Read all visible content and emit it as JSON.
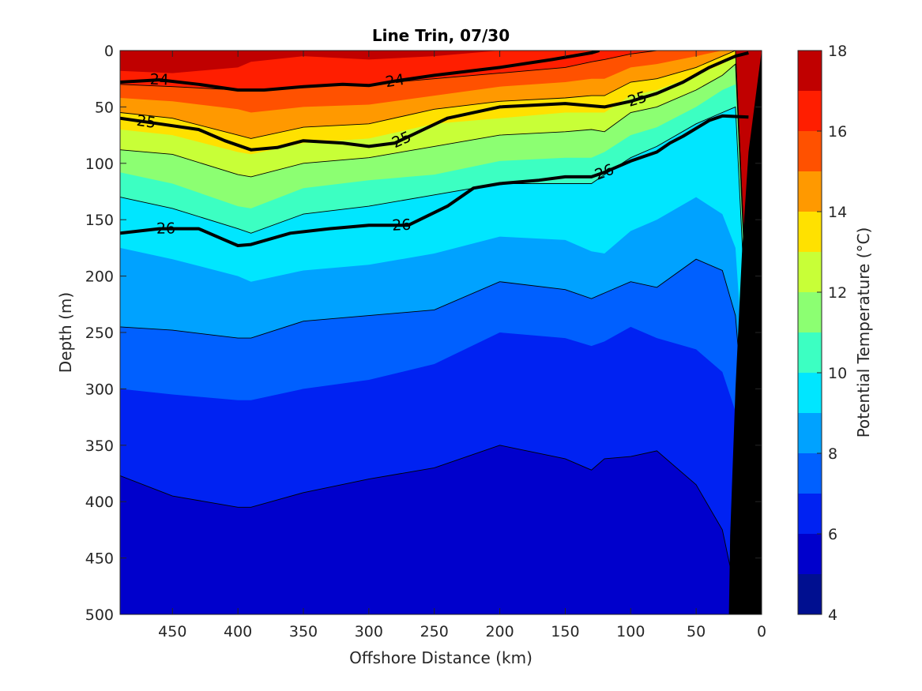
{
  "chart_data": {
    "type": "contourf",
    "title": "Line Trin, 07/30",
    "xlabel": "Offshore Distance (km)",
    "ylabel": "Depth (m)",
    "xlim": [
      490,
      0
    ],
    "ylim": [
      500,
      0
    ],
    "x_reversed": true,
    "y_reversed": true,
    "xticks": [
      450,
      400,
      350,
      300,
      250,
      200,
      150,
      100,
      50,
      0
    ],
    "yticks": [
      0,
      50,
      100,
      150,
      200,
      250,
      300,
      350,
      400,
      450,
      500
    ],
    "colorbar": {
      "label": "Potential Temperature (°C)",
      "range": [
        4,
        18
      ],
      "ticks": [
        4,
        6,
        8,
        10,
        12,
        14,
        16,
        18
      ],
      "levels": [
        4,
        5,
        6,
        7,
        8,
        9,
        10,
        11,
        12,
        13,
        14,
        15,
        16,
        17,
        18
      ],
      "colors": [
        "#000f90",
        "#0000cc",
        "#0022f2",
        "#0060ff",
        "#00a2ff",
        "#00e6ff",
        "#3cffc2",
        "#8cff72",
        "#c8ff37",
        "#ffe100",
        "#ff9900",
        "#ff5100",
        "#ff1e00",
        "#c00000"
      ]
    },
    "isotherm_depths": {
      "distance_km": [
        490,
        450,
        400,
        390,
        350,
        300,
        250,
        200,
        150,
        130,
        120,
        100,
        80,
        50,
        30,
        20,
        0
      ],
      "levels": [
        {
          "temp": 5,
          "depth_m": [
            520,
            520,
            520,
            520,
            520,
            520,
            520,
            520,
            520,
            520,
            520,
            520,
            520,
            520,
            520,
            520,
            520
          ]
        },
        {
          "temp": 6,
          "depth_m": [
            377,
            395,
            405,
            405,
            392,
            380,
            370,
            350,
            362,
            372,
            362,
            360,
            355,
            385,
            425,
            480,
            520
          ]
        },
        {
          "temp": 7,
          "depth_m": [
            300,
            305,
            310,
            310,
            300,
            292,
            278,
            250,
            255,
            262,
            258,
            245,
            255,
            265,
            285,
            320,
            520
          ]
        },
        {
          "temp": 8,
          "depth_m": [
            245,
            248,
            255,
            255,
            240,
            235,
            230,
            205,
            212,
            220,
            215,
            205,
            210,
            185,
            195,
            235,
            520
          ]
        },
        {
          "temp": 9,
          "depth_m": [
            175,
            185,
            200,
            205,
            195,
            190,
            180,
            165,
            168,
            178,
            180,
            160,
            150,
            130,
            145,
            175,
            520
          ]
        },
        {
          "temp": 10,
          "depth_m": [
            130,
            140,
            158,
            162,
            145,
            138,
            128,
            118,
            118,
            118,
            110,
            95,
            85,
            65,
            55,
            50,
            520
          ]
        },
        {
          "temp": 11,
          "depth_m": [
            108,
            118,
            138,
            140,
            122,
            115,
            110,
            98,
            95,
            95,
            90,
            75,
            68,
            50,
            35,
            30,
            520
          ]
        },
        {
          "temp": 12,
          "depth_m": [
            88,
            92,
            110,
            112,
            100,
            95,
            85,
            75,
            72,
            70,
            72,
            55,
            50,
            35,
            22,
            12,
            520
          ]
        },
        {
          "temp": 13,
          "depth_m": [
            70,
            75,
            90,
            92,
            82,
            78,
            65,
            60,
            55,
            55,
            55,
            40,
            35,
            22,
            12,
            5,
            520
          ]
        },
        {
          "temp": 14,
          "depth_m": [
            55,
            60,
            75,
            78,
            68,
            65,
            52,
            45,
            42,
            40,
            40,
            28,
            25,
            15,
            5,
            0,
            520
          ]
        },
        {
          "temp": 15,
          "depth_m": [
            42,
            45,
            52,
            55,
            50,
            48,
            40,
            32,
            28,
            25,
            25,
            15,
            12,
            5,
            0,
            0,
            520
          ]
        },
        {
          "temp": 16,
          "depth_m": [
            30,
            32,
            35,
            35,
            32,
            30,
            25,
            20,
            15,
            10,
            8,
            3,
            0,
            0,
            0,
            0,
            520
          ]
        },
        {
          "temp": 17,
          "depth_m": [
            18,
            20,
            15,
            10,
            5,
            8,
            5,
            0,
            0,
            0,
            0,
            0,
            0,
            0,
            0,
            0,
            520
          ]
        }
      ]
    },
    "density_contours": [
      {
        "label": "24",
        "label_positions_km": [
          460,
          280
        ],
        "distance_km": [
          490,
          460,
          430,
          400,
          380,
          350,
          320,
          300,
          280,
          250,
          200,
          160,
          130,
          124
        ],
        "depth_m": [
          28,
          26,
          30,
          35,
          35,
          32,
          30,
          31,
          27,
          22,
          15,
          8,
          2,
          0
        ]
      },
      {
        "label": "25",
        "label_positions_km": [
          470,
          275,
          95
        ],
        "distance_km": [
          490,
          460,
          430,
          410,
          390,
          370,
          350,
          320,
          300,
          280,
          240,
          200,
          150,
          120,
          100,
          80,
          60,
          40,
          20,
          10
        ],
        "depth_m": [
          60,
          65,
          70,
          80,
          88,
          86,
          80,
          82,
          85,
          82,
          60,
          50,
          47,
          50,
          45,
          38,
          28,
          15,
          5,
          2
        ]
      },
      {
        "label": "26",
        "label_positions_km": [
          455,
          275,
          120
        ],
        "distance_km": [
          490,
          460,
          430,
          410,
          400,
          390,
          360,
          330,
          300,
          270,
          240,
          220,
          200,
          170,
          150,
          130,
          120,
          100,
          80,
          70,
          60,
          40,
          30,
          10
        ],
        "depth_m": [
          162,
          158,
          158,
          168,
          173,
          172,
          162,
          158,
          155,
          155,
          138,
          122,
          118,
          115,
          112,
          112,
          108,
          98,
          90,
          82,
          76,
          62,
          58,
          59
        ]
      }
    ],
    "seafloor_km_at_depth": {
      "depth_m": [
        0,
        90,
        180,
        300,
        430,
        500
      ],
      "distance_km": [
        0,
        10,
        15,
        20,
        24,
        25
      ]
    }
  }
}
